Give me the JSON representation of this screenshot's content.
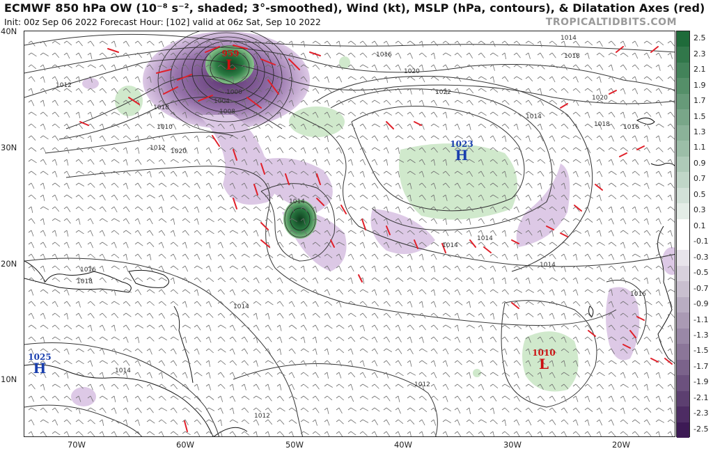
{
  "header": {
    "title": "ECMWF 850 hPa OW (10⁻⁸ s⁻², shaded; 3°-smoothed), Wind (kt), MSLP (hPa, contours), & Dilatation Axes (red)",
    "subtitle": "Init: 00z Sep 06 2022   Forecast Hour: [102]   valid at 06z Sat, Sep 10 2022",
    "brand": "TROPICALTIDBITS.COM"
  },
  "axes": {
    "lat_labels": [
      "40N",
      "30N",
      "20N",
      "10N"
    ],
    "lon_labels": [
      "70W",
      "60W",
      "50W",
      "40W",
      "30W",
      "20W"
    ]
  },
  "colorbar": {
    "ticks": [
      "2.5",
      "2.3",
      "2.1",
      "1.9",
      "1.7",
      "1.5",
      "1.3",
      "1.1",
      "0.9",
      "0.7",
      "0.5",
      "0.3",
      "0.1",
      "-0.1",
      "-0.3",
      "-0.5",
      "-0.7",
      "-0.9",
      "-1.1",
      "-1.3",
      "-1.5",
      "-1.7",
      "-1.9",
      "-2.1",
      "-2.3",
      "-2.5"
    ],
    "positive_color": "#1f6b3a",
    "negative_color": "#3d1a55"
  },
  "systems": [
    {
      "id": "low-north",
      "value": "959",
      "symbol": "L",
      "color": "#cc1111"
    },
    {
      "id": "high-central",
      "value": "1023",
      "symbol": "H",
      "color": "#1a3fae"
    },
    {
      "id": "high-west",
      "value": "1025",
      "symbol": "H",
      "color": "#1a3fae"
    },
    {
      "id": "low-east",
      "value": "1010",
      "symbol": "L",
      "color": "#cc1111"
    }
  ],
  "isobar_labels": [
    "1014",
    "1016",
    "1018",
    "1020",
    "1022",
    "1020",
    "1018",
    "1016",
    "1014",
    "1012",
    "1010",
    "1008",
    "1004",
    "1000",
    "1014",
    "1014",
    "1014",
    "1014",
    "1016",
    "1018",
    "1020",
    "1012",
    "1012",
    "1012",
    "1014",
    "1014",
    "1016",
    "1018"
  ],
  "colors": {
    "ow_positive": "#cde8c9",
    "ow_negative": "#d9c3e3",
    "dilatation": "#e0202a",
    "isobar": "#333333"
  }
}
